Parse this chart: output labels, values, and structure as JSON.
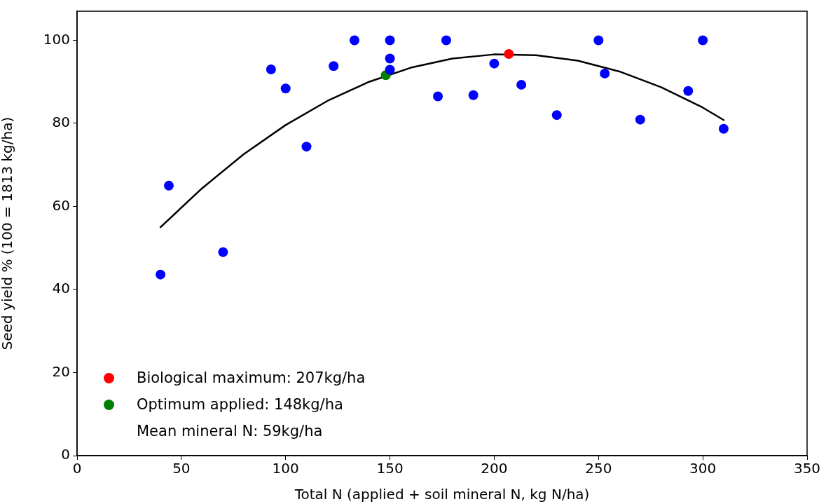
{
  "chart_data": {
    "type": "scatter",
    "xlabel": "Total N (applied + soil mineral N, kg N/ha)",
    "ylabel": "Seed yield % (100 = 1813 kg/ha)",
    "xlim": [
      0,
      350
    ],
    "xticks": [
      0,
      50,
      100,
      150,
      200,
      250,
      300,
      350
    ],
    "ylim": [
      0,
      107
    ],
    "yticks": [
      0,
      20,
      40,
      60,
      80,
      100
    ],
    "grid": false,
    "legend": "bottom left",
    "marker": "circle",
    "series": [
      {
        "type": "scatter",
        "color": "#0000ff",
        "x": [
          40,
          44,
          70,
          93,
          100,
          110,
          123,
          133,
          150,
          150,
          150,
          173,
          177,
          190,
          200,
          213,
          230,
          250,
          253,
          270,
          293,
          300,
          310
        ],
        "values": [
          43.6,
          65.0,
          49.0,
          93.0,
          88.4,
          74.4,
          93.8,
          100,
          100,
          95.6,
          92.9,
          86.5,
          100,
          86.8,
          94.4,
          89.3,
          82.0,
          100,
          92.0,
          80.9,
          87.8,
          100,
          78.7
        ]
      },
      {
        "type": "line",
        "color": "#000000",
        "marker": "none",
        "line_style": "solid",
        "x": [
          40,
          60,
          80,
          100,
          120,
          140,
          160,
          180,
          200,
          220,
          240,
          260,
          280,
          300,
          310
        ],
        "values": [
          55.0,
          64.4,
          72.6,
          79.6,
          85.4,
          90.0,
          93.4,
          95.6,
          96.6,
          96.4,
          95.1,
          92.5,
          88.7,
          83.8,
          80.8
        ]
      },
      {
        "type": "scatter",
        "name": "Biological maximum: 207kg/ha",
        "color": "#ff0000",
        "x": [
          207
        ],
        "values": [
          96.7
        ]
      },
      {
        "type": "scatter",
        "name": "Optimum applied: 148kg/ha",
        "color": "#008000",
        "x": [
          148
        ],
        "values": [
          91.6
        ]
      }
    ],
    "annotations": [
      "Mean mineral N: 59kg/ha"
    ]
  }
}
